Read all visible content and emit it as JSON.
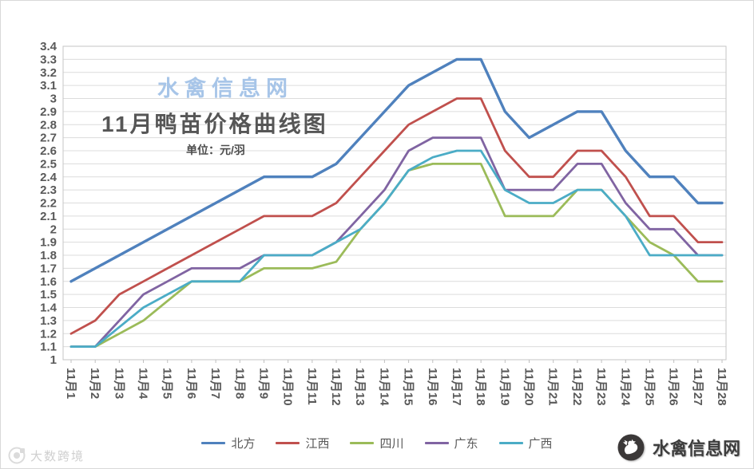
{
  "titles": {
    "watermark": "水禽信息网",
    "main": "11月鸭苗价格曲线图",
    "unit": "单位：元/羽"
  },
  "chart_data": {
    "type": "line",
    "title": "11月鸭苗价格曲线图",
    "unit_label": "单位：元/羽",
    "xlabel": "",
    "ylabel": "",
    "ylim": [
      1,
      3.4
    ],
    "ytick_step": 0.1,
    "grid": true,
    "legend_position": "bottom",
    "categories": [
      "11月1",
      "11月2",
      "11月3",
      "11月4",
      "11月5",
      "11月6",
      "11月7",
      "11月8",
      "11月9",
      "11月10",
      "11月11",
      "11月12",
      "11月13",
      "11月14",
      "11月15",
      "11月16",
      "11月17",
      "11月18",
      "11月19",
      "11月20",
      "11月21",
      "11月22",
      "11月23",
      "11月24",
      "11月25",
      "11月26",
      "11月27",
      "11月28"
    ],
    "series": [
      {
        "name": "北方",
        "color": "#4f81bd",
        "values": [
          1.6,
          1.7,
          1.8,
          1.9,
          2.0,
          2.1,
          2.2,
          2.3,
          2.4,
          2.4,
          2.4,
          2.5,
          2.7,
          2.9,
          3.1,
          3.2,
          3.3,
          3.3,
          2.9,
          2.7,
          2.8,
          2.9,
          2.9,
          2.6,
          2.4,
          2.4,
          2.2,
          2.2
        ]
      },
      {
        "name": "江西",
        "color": "#c0504d",
        "values": [
          1.2,
          1.3,
          1.5,
          1.6,
          1.7,
          1.8,
          1.9,
          2.0,
          2.1,
          2.1,
          2.1,
          2.2,
          2.4,
          2.6,
          2.8,
          2.9,
          3.0,
          3.0,
          2.6,
          2.4,
          2.4,
          2.6,
          2.6,
          2.4,
          2.1,
          2.1,
          1.9,
          1.9
        ]
      },
      {
        "name": "四川",
        "color": "#9bbb59",
        "values": [
          1.1,
          1.1,
          1.2,
          1.3,
          1.45,
          1.6,
          1.6,
          1.6,
          1.7,
          1.7,
          1.7,
          1.75,
          2.0,
          2.2,
          2.45,
          2.5,
          2.5,
          2.5,
          2.1,
          2.1,
          2.1,
          2.3,
          2.3,
          2.1,
          1.9,
          1.8,
          1.6,
          1.6
        ]
      },
      {
        "name": "广东",
        "color": "#8064a2",
        "values": [
          1.1,
          1.1,
          1.3,
          1.5,
          1.6,
          1.7,
          1.7,
          1.7,
          1.8,
          1.8,
          1.8,
          1.9,
          2.1,
          2.3,
          2.6,
          2.7,
          2.7,
          2.7,
          2.3,
          2.3,
          2.3,
          2.5,
          2.5,
          2.2,
          2.0,
          2.0,
          1.8,
          1.8
        ]
      },
      {
        "name": "广西",
        "color": "#4bacc6",
        "values": [
          1.1,
          1.1,
          1.25,
          1.4,
          1.5,
          1.6,
          1.6,
          1.6,
          1.8,
          1.8,
          1.8,
          1.9,
          2.0,
          2.2,
          2.45,
          2.55,
          2.6,
          2.6,
          2.3,
          2.2,
          2.2,
          2.3,
          2.3,
          2.1,
          1.8,
          1.8,
          1.8,
          1.8
        ]
      }
    ]
  },
  "footer": {
    "brand": "水禽信息网",
    "watermark": "大数跨境"
  }
}
